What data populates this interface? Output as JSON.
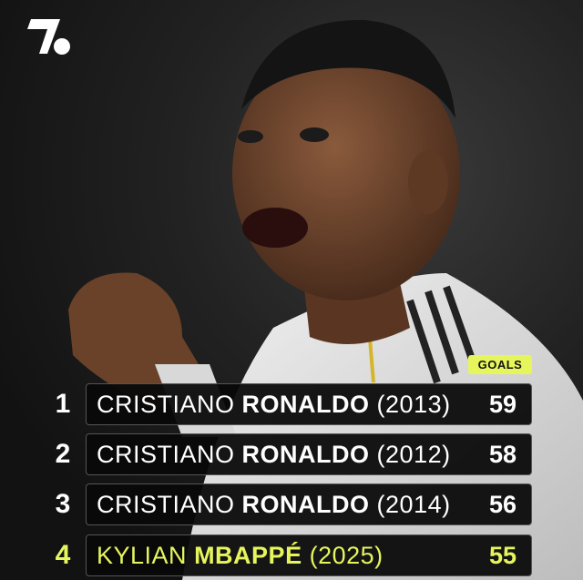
{
  "brand": {
    "logo": "1.",
    "accent_color": "#e6f55c"
  },
  "header": {
    "column_label": "GOALS"
  },
  "rows": [
    {
      "rank": "1",
      "first": "CRISTIANO",
      "last": "RONALDO",
      "year": "(2013)",
      "goals": "59",
      "highlight": false
    },
    {
      "rank": "2",
      "first": "CRISTIANO",
      "last": "RONALDO",
      "year": "(2012)",
      "goals": "58",
      "highlight": false
    },
    {
      "rank": "3",
      "first": "CRISTIANO",
      "last": "RONALDO",
      "year": "(2014)",
      "goals": "56",
      "highlight": false
    },
    {
      "rank": "4",
      "first": "KYLIAN",
      "last": "MBAPPÉ",
      "year": "(2025)",
      "goals": "55",
      "highlight": true
    }
  ]
}
